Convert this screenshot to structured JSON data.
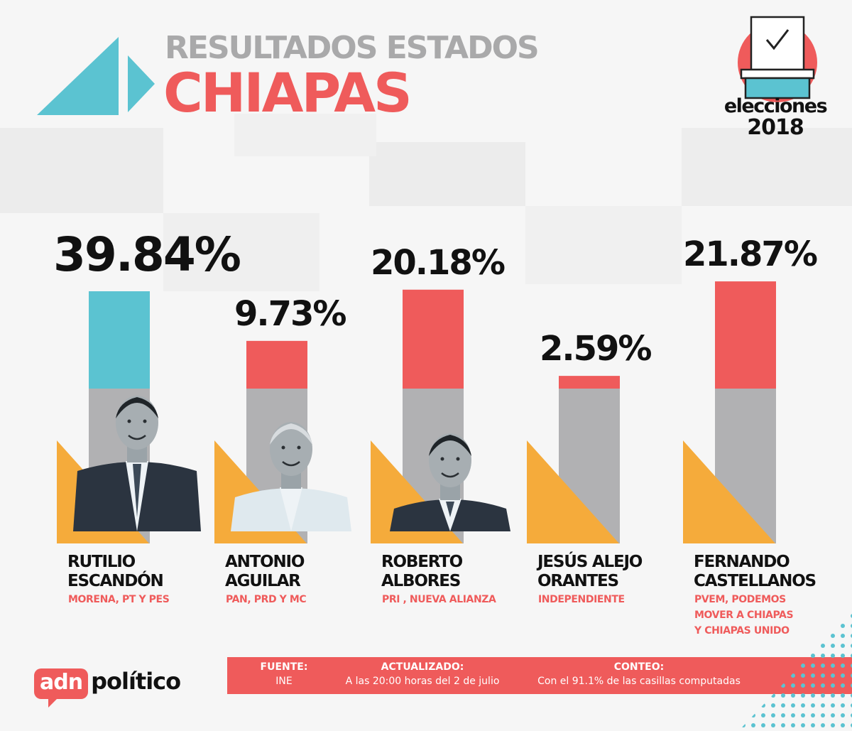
{
  "header": {
    "subtitle": "RESULTADOS ESTADOS",
    "title": "CHIAPAS"
  },
  "badge": {
    "word": "elecciones",
    "year": "2018"
  },
  "chart_data": {
    "type": "bar",
    "title": "CHIAPAS",
    "subtitle": "RESULTADOS ESTADOS",
    "unit": "%",
    "categories": [
      "RUTILIO ESCANDÓN",
      "ANTONIO AGUILAR",
      "ROBERTO ALBORES",
      "JESÚS ALEJO ORANTES",
      "FERNANDO CASTELLANOS"
    ],
    "values": [
      39.84,
      9.73,
      20.18,
      2.59,
      21.87
    ],
    "value_labels": [
      "39.84%",
      "9.73%",
      "20.18%",
      "2.59%",
      "21.87%"
    ],
    "name_lines": [
      [
        "RUTILIO",
        "ESCANDÓN"
      ],
      [
        "ANTONIO",
        "AGUILAR"
      ],
      [
        "ROBERTO",
        "ALBORES"
      ],
      [
        "JESÚS ALEJO",
        "ORANTES"
      ],
      [
        "FERNANDO",
        "CASTELLANOS"
      ]
    ],
    "parties": [
      [
        "MORENA, PT Y PES"
      ],
      [
        "PAN, PRD Y MC"
      ],
      [
        "PRI , NUEVA ALIANZA"
      ],
      [
        "INDEPENDIENTE"
      ],
      [
        "PVEM, PODEMOS",
        "MOVER A CHIAPAS",
        "Y CHIAPAS UNIDO"
      ]
    ],
    "photos": [
      "candidate-photo",
      "candidate-photo",
      "candidate-photo",
      null,
      null
    ],
    "leader_index": 0,
    "colors": {
      "leader": "#5bc3d1",
      "other": "#ef5b5b",
      "track": "#b1b1b3",
      "triangle": "#f5ab3b"
    }
  },
  "footer": {
    "source_label": "FUENTE:",
    "source_value": "INE",
    "updated_label": "ACTUALIZADO:",
    "updated_value": "A las 20:00 horas del 2 de julio",
    "count_label": "CONTEO:",
    "count_value": "Con el 91.1% de las casillas computadas"
  },
  "logo": {
    "box_text": "adn",
    "text": "político"
  }
}
